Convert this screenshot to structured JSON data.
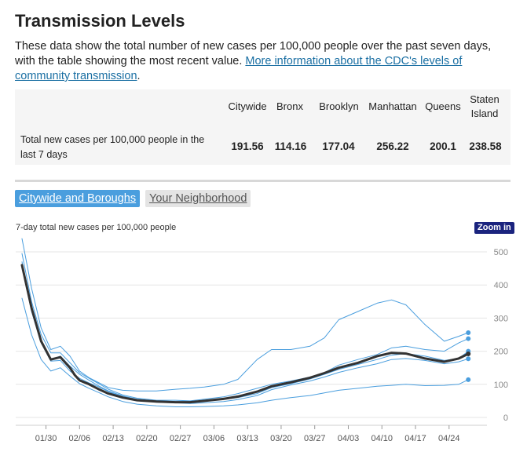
{
  "title": "Transmission Levels",
  "description": {
    "text": "These data show the total number of new cases per 100,000 people over the past seven days, with the table showing the most recent value. ",
    "link": "More information about the CDC's levels of community transmission",
    "end": "."
  },
  "table": {
    "headers": [
      "Citywide",
      "Bronx",
      "Brooklyn",
      "Manhattan",
      "Queens",
      "Staten Island"
    ],
    "row_label": "Total new cases per 100,000 people in the last 7 days",
    "values": [
      "191.56",
      "114.16",
      "177.04",
      "256.22",
      "200.1",
      "238.58"
    ]
  },
  "tabs": {
    "active": "Citywide and Boroughs",
    "inactive": "Your Neighborhood"
  },
  "chart_label": "7-day total new cases per 100,000 people",
  "zoom_label": "Zoom in",
  "chart_data": {
    "type": "line",
    "x_ticks": [
      "01/30",
      "02/06",
      "02/13",
      "02/20",
      "02/27",
      "03/06",
      "03/13",
      "03/20",
      "03/27",
      "04/03",
      "04/10",
      "04/17",
      "04/24"
    ],
    "y_ticks": [
      0,
      100,
      200,
      300,
      400,
      500
    ],
    "ylim": [
      0,
      540
    ],
    "x_range": [
      "01/25",
      "04/26"
    ],
    "series": [
      {
        "id": "citywide",
        "color": "#333333",
        "width": 3,
        "x": [
          0,
          2,
          4,
          6,
          8,
          10,
          11,
          12,
          14,
          16,
          18,
          21,
          24,
          28,
          32,
          35,
          38,
          42,
          45,
          49,
          52,
          56,
          60,
          63,
          66,
          70,
          74,
          77,
          80,
          84,
          88,
          91,
          93
        ],
        "values": [
          460,
          330,
          230,
          175,
          182,
          150,
          128,
          112,
          100,
          85,
          72,
          60,
          52,
          48,
          46,
          46,
          50,
          56,
          63,
          78,
          94,
          106,
          120,
          134,
          150,
          165,
          185,
          195,
          193,
          178,
          168,
          178,
          192
        ]
      },
      {
        "id": "manhattan",
        "color": "#4a9ede",
        "width": 1,
        "x": [
          0,
          2,
          4,
          6,
          8,
          10,
          12,
          14,
          16,
          18,
          21,
          24,
          28,
          32,
          35,
          38,
          42,
          45,
          49,
          52,
          56,
          60,
          63,
          66,
          70,
          74,
          77,
          80,
          84,
          88,
          91,
          93
        ],
        "values": [
          540,
          390,
          270,
          205,
          215,
          185,
          140,
          120,
          105,
          90,
          82,
          80,
          80,
          85,
          88,
          92,
          100,
          115,
          175,
          205,
          205,
          215,
          240,
          295,
          320,
          345,
          355,
          340,
          280,
          230,
          245,
          256
        ]
      },
      {
        "id": "statenisland",
        "color": "#4a9ede",
        "width": 1,
        "x": [
          0,
          2,
          4,
          6,
          8,
          10,
          12,
          14,
          16,
          18,
          21,
          24,
          28,
          32,
          35,
          38,
          42,
          45,
          49,
          52,
          56,
          60,
          63,
          66,
          70,
          74,
          77,
          80,
          84,
          88,
          91,
          93
        ],
        "values": [
          495,
          350,
          250,
          195,
          195,
          165,
          135,
          118,
          102,
          85,
          68,
          58,
          52,
          52,
          50,
          55,
          62,
          72,
          88,
          100,
          110,
          122,
          135,
          158,
          175,
          190,
          210,
          215,
          205,
          200,
          225,
          238
        ]
      },
      {
        "id": "queens",
        "color": "#4a9ede",
        "width": 1,
        "x": [
          0,
          2,
          4,
          6,
          8,
          10,
          12,
          14,
          16,
          18,
          21,
          24,
          28,
          32,
          35,
          38,
          42,
          45,
          49,
          52,
          56,
          60,
          63,
          66,
          70,
          74,
          77,
          80,
          84,
          88,
          91,
          93
        ],
        "values": [
          470,
          330,
          235,
          175,
          185,
          155,
          130,
          112,
          95,
          80,
          65,
          55,
          50,
          48,
          48,
          50,
          55,
          60,
          72,
          90,
          102,
          116,
          130,
          145,
          160,
          175,
          188,
          193,
          185,
          172,
          178,
          200
        ]
      },
      {
        "id": "brooklyn",
        "color": "#4a9ede",
        "width": 1,
        "x": [
          0,
          2,
          4,
          6,
          8,
          10,
          12,
          14,
          16,
          18,
          21,
          24,
          28,
          32,
          35,
          38,
          42,
          45,
          49,
          52,
          56,
          60,
          63,
          66,
          70,
          74,
          77,
          80,
          84,
          88,
          91,
          93
        ],
        "values": [
          460,
          320,
          225,
          170,
          172,
          140,
          118,
          104,
          92,
          78,
          62,
          52,
          46,
          44,
          42,
          44,
          48,
          54,
          66,
          84,
          98,
          110,
          122,
          136,
          150,
          162,
          175,
          178,
          172,
          162,
          168,
          177
        ]
      },
      {
        "id": "bronx",
        "color": "#4a9ede",
        "width": 1,
        "x": [
          0,
          2,
          4,
          6,
          8,
          10,
          12,
          14,
          16,
          18,
          21,
          24,
          28,
          32,
          35,
          38,
          42,
          45,
          49,
          52,
          56,
          60,
          63,
          66,
          70,
          74,
          77,
          80,
          84,
          88,
          91,
          93
        ],
        "values": [
          360,
          250,
          175,
          140,
          150,
          125,
          102,
          88,
          75,
          62,
          48,
          40,
          35,
          32,
          32,
          33,
          35,
          38,
          44,
          52,
          60,
          66,
          74,
          82,
          88,
          94,
          97,
          100,
          96,
          97,
          100,
          114
        ]
      }
    ]
  }
}
